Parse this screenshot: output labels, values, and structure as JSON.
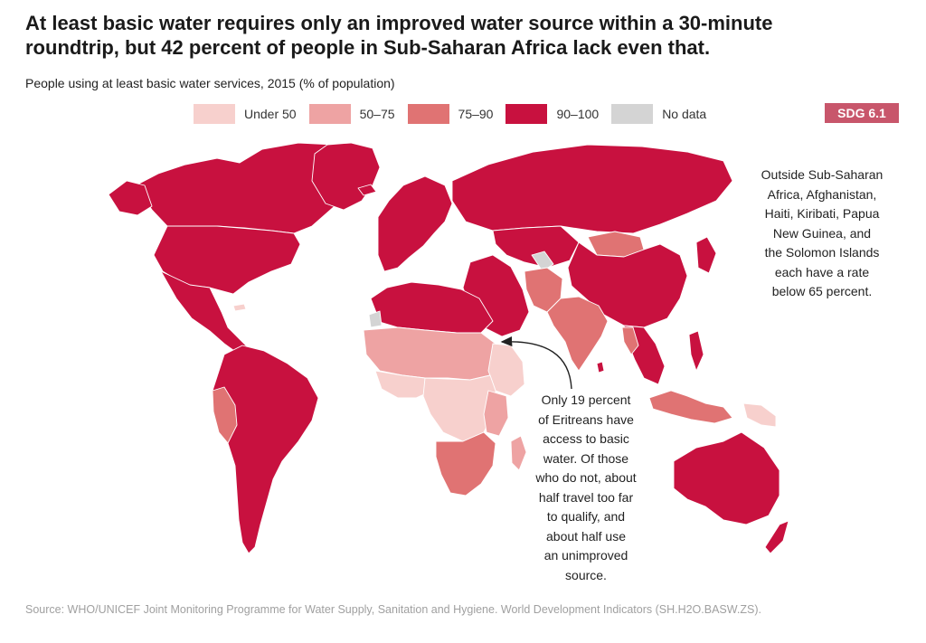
{
  "header": {
    "title_lines": [
      "At least basic water requires only an improved water source within a 30-minute",
      "roundtrip, but 42 percent of people in Sub-Saharan Africa lack even that."
    ],
    "subtitle": "People using at least basic water services, 2015 (% of population)"
  },
  "legend": {
    "items": [
      {
        "label": "Under 50",
        "color": "#f7d0cd"
      },
      {
        "label": "50–75",
        "color": "#eea3a3"
      },
      {
        "label": "75–90",
        "color": "#e07373"
      },
      {
        "label": "90–100",
        "color": "#c8113f"
      },
      {
        "label": "No data",
        "color": "#d4d4d4"
      }
    ]
  },
  "badge": {
    "label": "SDG 6.1",
    "color": "#c8566b"
  },
  "notes": {
    "outside": [
      "Outside Sub-Saharan",
      "Africa, Afghanistan,",
      "Haiti, Kiribati, Papua",
      "New Guinea, and",
      "the Solomon Islands",
      "each have a rate",
      "below 65 percent."
    ],
    "eritrea": [
      "Only 19 percent",
      "of Eritreans have",
      "access to basic",
      "water. Of those",
      "who do not, about",
      "half travel too far",
      "to qualify, and",
      "about half use",
      "an unimproved",
      "source."
    ]
  },
  "source": "Source: WHO/UNICEF Joint Monitoring Programme for Water Supply, Sanitation and Hygiene. World Development Indicators (SH.H2O.BASW.ZS)."
}
